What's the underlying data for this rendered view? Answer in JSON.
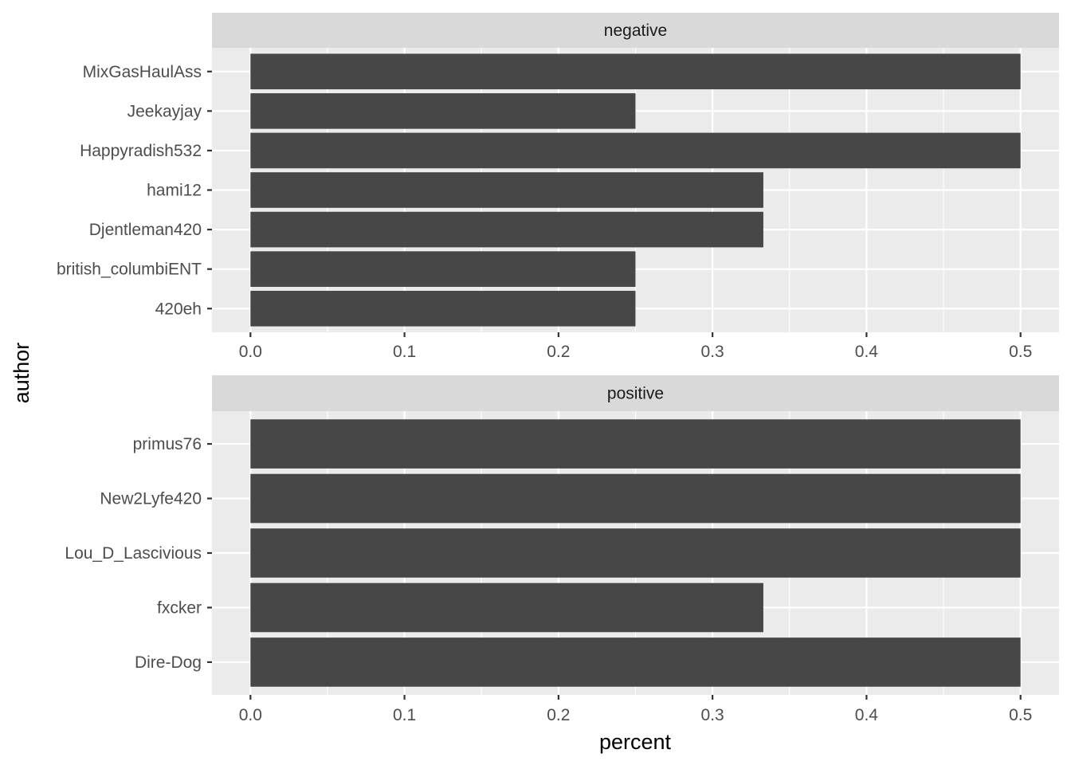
{
  "chart_data": {
    "type": "bar",
    "orientation": "horizontal",
    "xlabel": "percent",
    "ylabel": "author",
    "xlim": [
      -0.025,
      0.525
    ],
    "x_ticks": [
      {
        "value": 0.0,
        "label": "0.0"
      },
      {
        "value": 0.1,
        "label": "0.1"
      },
      {
        "value": 0.2,
        "label": "0.2"
      },
      {
        "value": 0.3,
        "label": "0.3"
      },
      {
        "value": 0.4,
        "label": "0.4"
      },
      {
        "value": 0.5,
        "label": "0.5"
      }
    ],
    "grid": true,
    "bar_color": "#474747",
    "panel_background": "#ebebeb",
    "strip_background": "#d9d9d9",
    "facets": [
      {
        "label": "negative",
        "categories": [
          "MixGasHaulAss",
          "Jeekayjay",
          "Happyradish532",
          "hami12",
          "Djentleman420",
          "british_columbiENT",
          "420eh"
        ],
        "values": [
          0.5,
          0.25,
          0.5,
          0.333,
          0.333,
          0.25,
          0.25
        ]
      },
      {
        "label": "positive",
        "categories": [
          "primus76",
          "New2Lyfe420",
          "Lou_D_Lascivious",
          "fxcker",
          "Dire-Dog"
        ],
        "values": [
          0.5,
          0.5,
          0.5,
          0.333,
          0.5
        ]
      }
    ]
  }
}
